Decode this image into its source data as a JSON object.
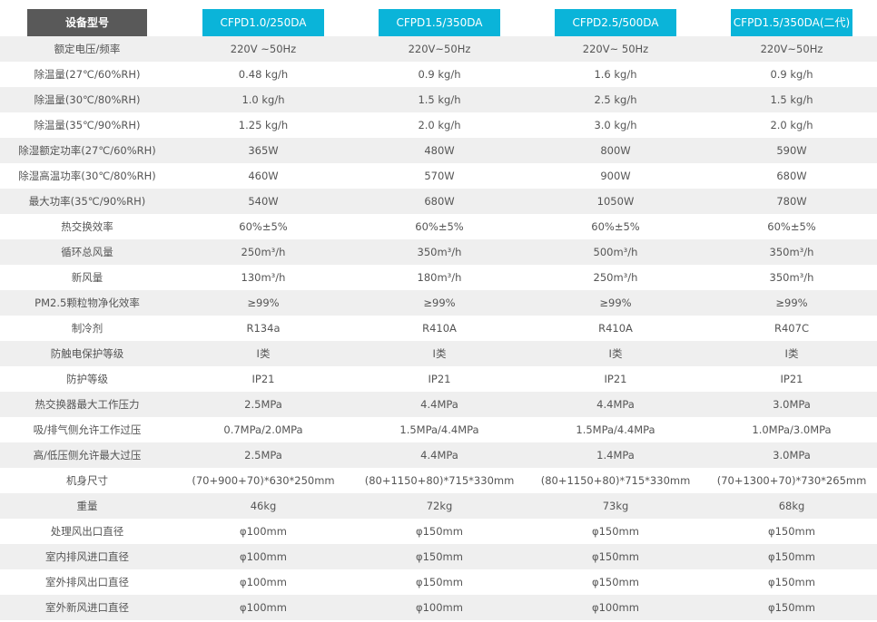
{
  "table": {
    "header": [
      "设备型号",
      "CFPD1.0/250DA",
      "CFPD1.5/350DA",
      "CFPD2.5/500DA",
      "CFPD1.5/350DA(二代)"
    ],
    "rows": [
      [
        "额定电压/频率",
        "220V ~50Hz",
        "220V~50Hz",
        "220V~ 50Hz",
        "220V~50Hz"
      ],
      [
        "除温量(27℃/60%RH)",
        "0.48 kg/h",
        "0.9 kg/h",
        "1.6 kg/h",
        "0.9 kg/h"
      ],
      [
        "除温量(30℃/80%RH)",
        "1.0 kg/h",
        "1.5 kg/h",
        "2.5 kg/h",
        "1.5 kg/h"
      ],
      [
        "除温量(35℃/90%RH)",
        "1.25 kg/h",
        "2.0 kg/h",
        "3.0 kg/h",
        "2.0 kg/h"
      ],
      [
        "除湿额定功率(27℃/60%RH)",
        "365W",
        "480W",
        "800W",
        "590W"
      ],
      [
        "除湿高温功率(30℃/80%RH)",
        "460W",
        "570W",
        "900W",
        "680W"
      ],
      [
        "最大功率(35℃/90%RH)",
        "540W",
        "680W",
        "1050W",
        "780W"
      ],
      [
        "热交换效率",
        "60%±5%",
        "60%±5%",
        "60%±5%",
        "60%±5%"
      ],
      [
        "循环总风量",
        "250m³/h",
        "350m³/h",
        "500m³/h",
        "350m³/h"
      ],
      [
        "新风量",
        "130m³/h",
        "180m³/h",
        "250m³/h",
        "350m³/h"
      ],
      [
        "PM2.5颗粒物净化效率",
        "≥99%",
        "≥99%",
        "≥99%",
        "≥99%"
      ],
      [
        "制冷剂",
        "R134a",
        "R410A",
        "R410A",
        "R407C"
      ],
      [
        "防触电保护等级",
        "Ⅰ类",
        "Ⅰ类",
        "Ⅰ类",
        "Ⅰ类"
      ],
      [
        "防护等级",
        "IP21",
        "IP21",
        "IP21",
        "IP21"
      ],
      [
        "热交换器最大工作压力",
        "2.5MPa",
        "4.4MPa",
        "4.4MPa",
        "3.0MPa"
      ],
      [
        "吸/排气侧允许工作过压",
        "0.7MPa/2.0MPa",
        "1.5MPa/4.4MPa",
        "1.5MPa/4.4MPa",
        "1.0MPa/3.0MPa"
      ],
      [
        "高/低压侧允许最大过压",
        "2.5MPa",
        "4.4MPa",
        "1.4MPa",
        "3.0MPa"
      ],
      [
        "机身尺寸",
        "(70+900+70)*630*250mm",
        "(80+1150+80)*715*330mm",
        "(80+1150+80)*715*330mm",
        "(70+1300+70)*730*265mm"
      ],
      [
        "重量",
        "46kg",
        "72kg",
        "73kg",
        "68kg"
      ],
      [
        "处理风出口直径",
        "φ100mm",
        "φ150mm",
        "φ150mm",
        "φ150mm"
      ],
      [
        "室内排风进口直径",
        "φ100mm",
        "φ150mm",
        "φ150mm",
        "φ150mm"
      ],
      [
        "室外排风出口直径",
        "φ100mm",
        "φ150mm",
        "φ150mm",
        "φ150mm"
      ],
      [
        "室外新风进口直径",
        "φ100mm",
        "φ100mm",
        "φ100mm",
        "φ150mm"
      ]
    ]
  }
}
